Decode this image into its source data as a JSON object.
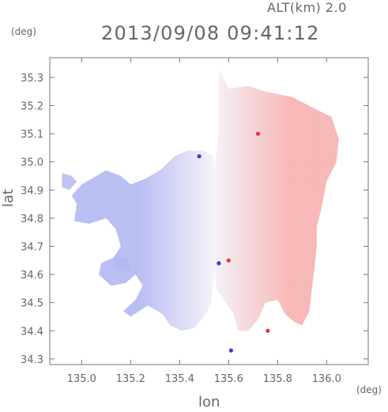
{
  "header": {
    "altitude_label": "ALT(km) 2.0",
    "timestamp": "2013/09/08 09:41:12"
  },
  "chart_data": {
    "type": "heatmap",
    "title": "2013/09/08 09:41:12",
    "subtitle": "ALT(km) 2.0",
    "xlabel": "lon",
    "ylabel": "lat",
    "x_unit": "(deg)",
    "y_unit": "(deg)",
    "xlim": [
      134.87,
      136.17
    ],
    "ylim": [
      34.28,
      35.37
    ],
    "x_ticks": [
      135.0,
      135.2,
      135.4,
      135.6,
      135.8,
      136.0
    ],
    "x_tick_labels": [
      "135.0",
      "135.2",
      "135.4",
      "135.6",
      "135.8",
      "136.0"
    ],
    "y_ticks": [
      34.3,
      34.4,
      34.5,
      34.6,
      34.7,
      34.8,
      34.9,
      35.0,
      35.1,
      35.2,
      35.3
    ],
    "y_tick_labels": [
      "34.3",
      "34.4",
      "34.5",
      "34.6",
      "34.7",
      "34.8",
      "34.9",
      "35.0",
      "35.1",
      "35.2",
      "35.3"
    ],
    "grid": false,
    "colors": {
      "negative": "#b3b8f2",
      "zero": "#f4f1fa",
      "positive": "#f7b6b4",
      "strong_positive": "#e23a3a",
      "strong_negative": "#3a3ad8"
    },
    "field": {
      "center": [
        135.53,
        34.83
      ],
      "zero_line_lon": 135.54,
      "regions": [
        {
          "sign": "positive",
          "intensity": 0.45,
          "outline": [
            [
              135.56,
              35.33
            ],
            [
              135.6,
              35.26
            ],
            [
              135.68,
              35.27
            ],
            [
              135.75,
              35.25
            ],
            [
              135.86,
              35.23
            ],
            [
              135.95,
              35.19
            ],
            [
              136.02,
              35.16
            ],
            [
              136.05,
              35.08
            ],
            [
              136.04,
              35.0
            ],
            [
              136.0,
              34.93
            ],
            [
              135.98,
              34.84
            ],
            [
              135.96,
              34.77
            ],
            [
              135.96,
              34.7
            ],
            [
              135.95,
              34.62
            ],
            [
              135.94,
              34.55
            ],
            [
              135.93,
              34.47
            ],
            [
              135.9,
              34.42
            ],
            [
              135.87,
              34.43
            ],
            [
              135.83,
              34.46
            ],
            [
              135.8,
              34.51
            ],
            [
              135.75,
              34.5
            ],
            [
              135.72,
              34.44
            ],
            [
              135.68,
              34.4
            ],
            [
              135.64,
              34.4
            ],
            [
              135.62,
              34.46
            ],
            [
              135.58,
              34.51
            ],
            [
              135.55,
              34.55
            ],
            [
              135.54,
              34.65
            ],
            [
              135.54,
              34.75
            ],
            [
              135.54,
              34.85
            ],
            [
              135.54,
              34.95
            ],
            [
              135.55,
              35.03
            ],
            [
              135.56,
              35.12
            ],
            [
              135.56,
              35.22
            ]
          ]
        },
        {
          "sign": "negative",
          "intensity": 0.4,
          "outline": [
            [
              135.54,
              35.02
            ],
            [
              135.5,
              35.04
            ],
            [
              135.43,
              35.04
            ],
            [
              135.38,
              35.02
            ],
            [
              135.32,
              34.97
            ],
            [
              135.26,
              34.94
            ],
            [
              135.2,
              34.92
            ],
            [
              135.16,
              34.95
            ],
            [
              135.1,
              34.97
            ],
            [
              135.04,
              34.94
            ],
            [
              135.0,
              34.92
            ],
            [
              134.96,
              34.88
            ],
            [
              134.98,
              34.85
            ],
            [
              134.97,
              34.79
            ],
            [
              135.03,
              34.78
            ],
            [
              135.1,
              34.8
            ],
            [
              135.14,
              34.76
            ],
            [
              135.16,
              34.7
            ],
            [
              135.13,
              34.66
            ],
            [
              135.08,
              34.64
            ],
            [
              135.07,
              34.6
            ],
            [
              135.12,
              34.56
            ],
            [
              135.18,
              34.57
            ],
            [
              135.22,
              34.6
            ],
            [
              135.25,
              34.56
            ],
            [
              135.22,
              34.51
            ],
            [
              135.17,
              34.47
            ],
            [
              135.2,
              34.45
            ],
            [
              135.27,
              34.49
            ],
            [
              135.33,
              34.46
            ],
            [
              135.36,
              34.42
            ],
            [
              135.41,
              34.4
            ],
            [
              135.46,
              34.41
            ],
            [
              135.5,
              34.45
            ],
            [
              135.53,
              34.5
            ],
            [
              135.54,
              34.6
            ],
            [
              135.54,
              34.7
            ],
            [
              135.54,
              34.8
            ],
            [
              135.54,
              34.9
            ]
          ]
        },
        {
          "sign": "negative",
          "intensity": 0.3,
          "outline": [
            [
              134.92,
              34.96
            ],
            [
              134.96,
              34.95
            ],
            [
              134.98,
              34.93
            ],
            [
              134.95,
              34.9
            ],
            [
              134.92,
              34.91
            ]
          ]
        },
        {
          "sign": "negative",
          "intensity": 0.3,
          "outline": [
            [
              135.14,
              34.66
            ],
            [
              135.19,
              34.66
            ],
            [
              135.2,
              34.62
            ],
            [
              135.16,
              34.61
            ],
            [
              135.13,
              34.63
            ]
          ]
        }
      ],
      "hotspots": [
        {
          "lon": 135.72,
          "lat": 35.1,
          "sign": "positive"
        },
        {
          "lon": 135.76,
          "lat": 34.4,
          "sign": "positive"
        },
        {
          "lon": 135.6,
          "lat": 34.65,
          "sign": "positive"
        },
        {
          "lon": 135.56,
          "lat": 34.64,
          "sign": "negative"
        },
        {
          "lon": 135.61,
          "lat": 34.33,
          "sign": "negative"
        },
        {
          "lon": 135.48,
          "lat": 35.02,
          "sign": "negative"
        }
      ]
    }
  }
}
